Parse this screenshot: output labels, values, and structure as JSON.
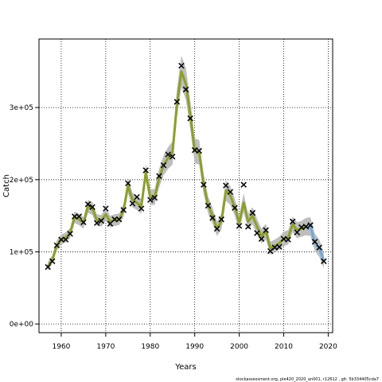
{
  "chart_data": {
    "type": "line",
    "xlabel": "Years",
    "ylabel": "Catch",
    "xlim": [
      1955,
      2021
    ],
    "ylim": [
      -12000,
      395000
    ],
    "xticks": [
      1960,
      1970,
      1980,
      1990,
      2000,
      2010,
      2020
    ],
    "xtick_labels": [
      "1960",
      "1970",
      "1980",
      "1990",
      "2000",
      "2010",
      "2020"
    ],
    "yticks": [
      0,
      100000,
      200000,
      300000
    ],
    "ytick_labels": [
      "0e+00",
      "1e+05",
      "2e+05",
      "3e+05"
    ],
    "grid": true,
    "colors": {
      "band": "#bebebe",
      "estimate": "#8aa02c",
      "forecast": "#6fa8dc",
      "observed": "#000000"
    },
    "footer": "stockassessment.org, ple420_2020_an001, r12612 , git: 5b334405cda7",
    "years": [
      1957,
      1958,
      1959,
      1960,
      1961,
      1962,
      1963,
      1964,
      1965,
      1966,
      1967,
      1968,
      1969,
      1970,
      1971,
      1972,
      1973,
      1974,
      1975,
      1976,
      1977,
      1978,
      1979,
      1980,
      1981,
      1982,
      1983,
      1984,
      1985,
      1986,
      1987,
      1988,
      1989,
      1990,
      1991,
      1992,
      1993,
      1994,
      1995,
      1996,
      1997,
      1998,
      1999,
      2000,
      2001,
      2002,
      2003,
      2004,
      2005,
      2006,
      2007,
      2008,
      2009,
      2010,
      2011,
      2012,
      2013,
      2014,
      2015,
      2016,
      2017,
      2018,
      2019
    ],
    "estimate": [
      80000,
      89000,
      109000,
      117000,
      120000,
      126000,
      148000,
      145000,
      140000,
      163000,
      160000,
      144000,
      143000,
      152000,
      142000,
      144000,
      145000,
      157000,
      192000,
      172000,
      168000,
      163000,
      210000,
      176000,
      176000,
      202000,
      220000,
      230000,
      237000,
      305000,
      350000,
      333000,
      290000,
      240000,
      238000,
      194000,
      165000,
      150000,
      132000,
      142000,
      185000,
      178000,
      162000,
      140000,
      168000,
      142000,
      150000,
      135000,
      122000,
      128000,
      105000,
      108000,
      112000,
      118000,
      120000,
      138000,
      130000,
      132000,
      135000,
      135000,
      113000,
      105000,
      88000
    ],
    "lower": [
      74000,
      83000,
      102000,
      110000,
      113000,
      119000,
      140000,
      137000,
      132000,
      154000,
      151000,
      136000,
      135000,
      143000,
      134000,
      136000,
      137000,
      148000,
      181000,
      162000,
      158000,
      153000,
      198000,
      165000,
      165000,
      189000,
      206000,
      215000,
      221000,
      285000,
      328000,
      311000,
      270000,
      223000,
      221000,
      180000,
      153000,
      139000,
      122000,
      131000,
      171000,
      165000,
      150000,
      129000,
      155000,
      131000,
      138000,
      124000,
      112000,
      117000,
      96000,
      99000,
      103000,
      108000,
      110000,
      127000,
      119000,
      121000,
      123000,
      122000,
      101000,
      93000,
      77000
    ],
    "upper": [
      86000,
      95000,
      116000,
      124000,
      127000,
      133000,
      156000,
      153000,
      148000,
      172000,
      169000,
      152000,
      151000,
      161000,
      150000,
      152000,
      153000,
      166000,
      203000,
      182000,
      178000,
      173000,
      222000,
      187000,
      187000,
      215000,
      234000,
      245000,
      253000,
      325000,
      372000,
      355000,
      310000,
      257000,
      255000,
      208000,
      177000,
      161000,
      142000,
      153000,
      199000,
      191000,
      174000,
      151000,
      181000,
      153000,
      162000,
      146000,
      132000,
      139000,
      114000,
      117000,
      121000,
      128000,
      130000,
      149000,
      141000,
      143000,
      147000,
      148000,
      125000,
      117000,
      99000
    ],
    "forecast_start_year": 2015,
    "observed_years": [
      1957,
      1958,
      1959,
      1960,
      1961,
      1962,
      1963,
      1964,
      1965,
      1966,
      1967,
      1968,
      1969,
      1970,
      1971,
      1972,
      1973,
      1974,
      1975,
      1976,
      1977,
      1978,
      1979,
      1980,
      1981,
      1982,
      1983,
      1984,
      1985,
      1986,
      1987,
      1988,
      1989,
      1990,
      1991,
      1992,
      1993,
      1994,
      1995,
      1996,
      1997,
      1998,
      1999,
      2000,
      2001,
      2002,
      2003,
      2004,
      2005,
      2006,
      2007,
      2008,
      2009,
      2010,
      2011,
      2012,
      2013,
      2014,
      2015,
      2016,
      2017,
      2018,
      2019
    ],
    "observed": [
      79000,
      87000,
      109000,
      117000,
      117000,
      125000,
      149000,
      149000,
      141000,
      166000,
      162000,
      140000,
      143000,
      160000,
      139000,
      145000,
      145000,
      158000,
      195000,
      167000,
      176000,
      160000,
      213000,
      172000,
      175000,
      205000,
      220000,
      235000,
      232000,
      308000,
      358000,
      325000,
      285000,
      241000,
      240000,
      193000,
      164000,
      147000,
      132000,
      145000,
      192000,
      183000,
      161000,
      136000,
      193000,
      135000,
      154000,
      126000,
      118000,
      130000,
      101000,
      106000,
      107000,
      118000,
      117000,
      142000,
      127000,
      134000,
      135000,
      137000,
      114000,
      106000,
      87000
    ]
  }
}
